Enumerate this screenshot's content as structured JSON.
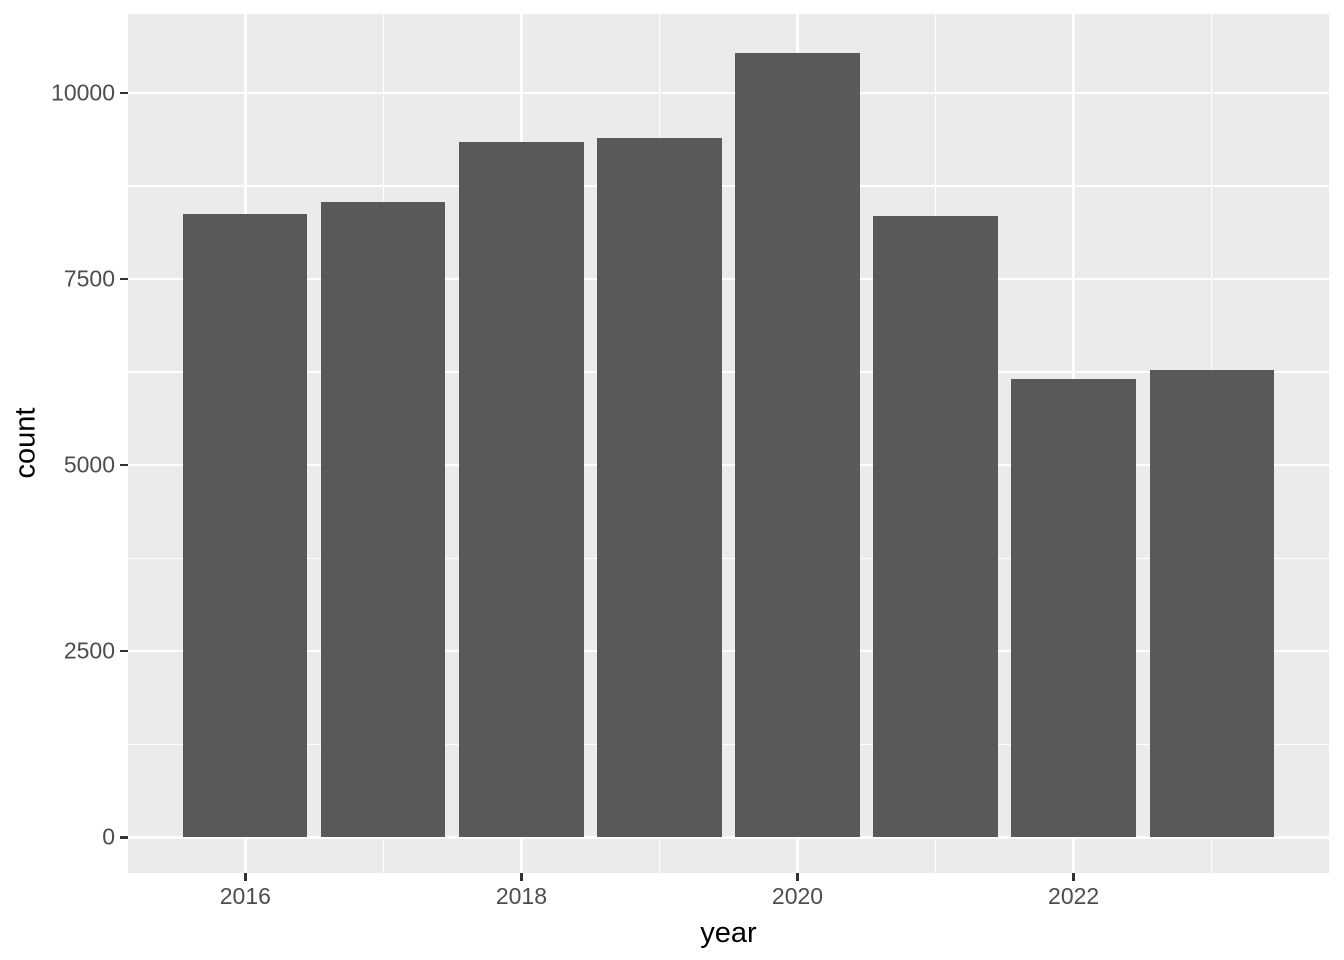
{
  "chart_data": {
    "type": "bar",
    "title": "",
    "xlabel": "year",
    "ylabel": "count",
    "categories": [
      2016,
      2017,
      2018,
      2019,
      2020,
      2021,
      2022,
      2023
    ],
    "values": [
      8370,
      8540,
      9340,
      9400,
      10540,
      8350,
      6160,
      6280
    ],
    "x_ticks": [
      2016,
      2018,
      2020,
      2022
    ],
    "y_ticks": [
      0,
      2500,
      5000,
      7500,
      10000
    ],
    "xlim": [
      2015.15,
      2023.85
    ],
    "ylim": [
      -480,
      11060
    ],
    "bar_width": 0.9,
    "grid": true,
    "legend": false,
    "theme": "ggplot2-grey"
  },
  "style": {
    "panel_bg": "#EBEBEB",
    "bar_fill": "#595959",
    "grid_color": "#FFFFFF",
    "tick_color": "#333333",
    "tick_label_color": "#4D4D4D",
    "title_color": "#000000",
    "page_bg": "#FFFFFF"
  }
}
